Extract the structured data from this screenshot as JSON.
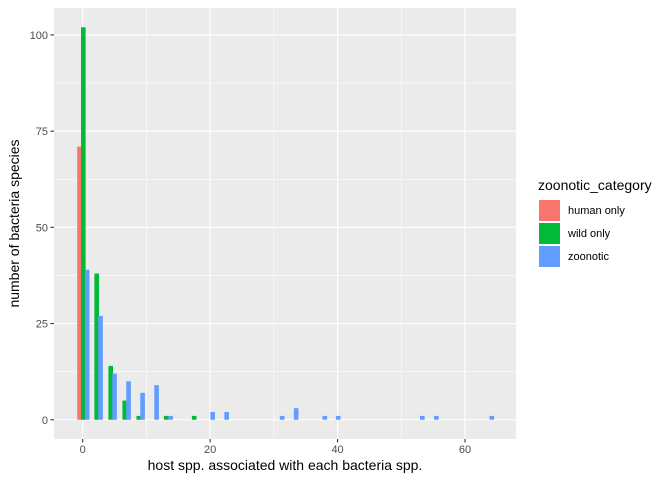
{
  "chart_data": {
    "type": "bar",
    "xlabel": "host spp. associated with each bacteria spp.",
    "ylabel": "number of bacteria species",
    "xlim": [
      -4.5,
      68
    ],
    "ylim": [
      -5,
      107
    ],
    "x_ticks": [
      0,
      20,
      40,
      60
    ],
    "y_ticks": [
      0,
      25,
      50,
      75,
      100
    ],
    "grid": true,
    "legend_title": "zoonotic_category",
    "legend_position": "right",
    "series": [
      {
        "name": "human only",
        "color": "#F8766D",
        "points": [
          {
            "x": -0.5,
            "y": 71
          }
        ]
      },
      {
        "name": "wild only",
        "color": "#00BA38",
        "points": [
          {
            "x": 0.1,
            "y": 102
          },
          {
            "x": 2.2,
            "y": 38
          },
          {
            "x": 4.4,
            "y": 14
          },
          {
            "x": 6.6,
            "y": 5
          },
          {
            "x": 8.8,
            "y": 1
          },
          {
            "x": 13.1,
            "y": 1
          },
          {
            "x": 17.5,
            "y": 1
          }
        ]
      },
      {
        "name": "zoonotic",
        "color": "#619CFF",
        "points": [
          {
            "x": 0.7,
            "y": 39
          },
          {
            "x": 2.8,
            "y": 27
          },
          {
            "x": 5.0,
            "y": 12
          },
          {
            "x": 7.2,
            "y": 10
          },
          {
            "x": 9.4,
            "y": 7
          },
          {
            "x": 11.6,
            "y": 9
          },
          {
            "x": 13.8,
            "y": 1
          },
          {
            "x": 20.4,
            "y": 2
          },
          {
            "x": 22.6,
            "y": 2
          },
          {
            "x": 31.3,
            "y": 1
          },
          {
            "x": 33.5,
            "y": 3
          },
          {
            "x": 38.0,
            "y": 1
          },
          {
            "x": 40.1,
            "y": 1
          },
          {
            "x": 53.3,
            "y": 1
          },
          {
            "x": 55.5,
            "y": 1
          },
          {
            "x": 64.2,
            "y": 1
          }
        ]
      }
    ]
  }
}
